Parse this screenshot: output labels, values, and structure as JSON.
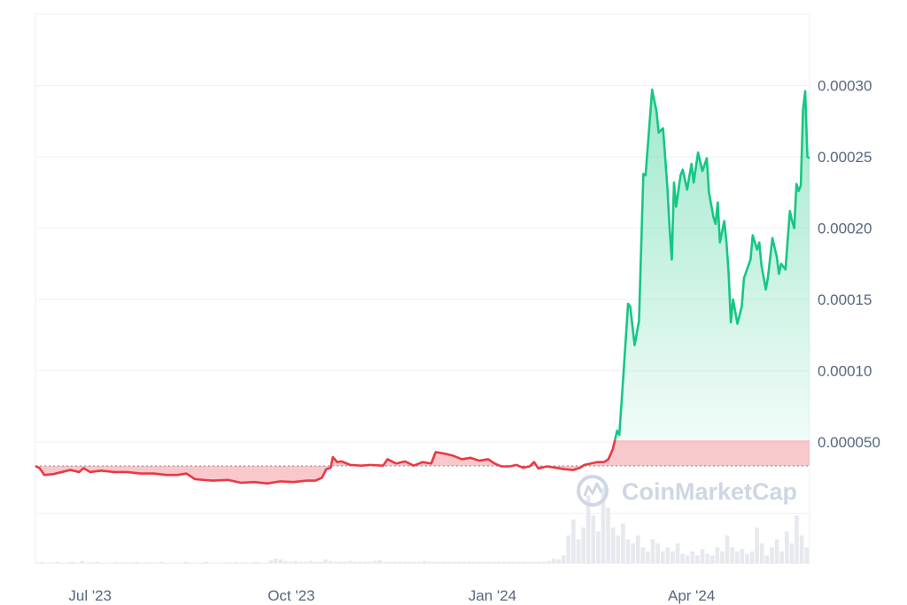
{
  "chart_data": {
    "type": "area",
    "watermark": "CoinMarketCap",
    "x_tick_labels": [
      "Jul '23",
      "Oct '23",
      "Jan '24",
      "Apr '24"
    ],
    "y_tick_labels": [
      "0.000050",
      "0.00010",
      "0.00015",
      "0.00020",
      "0.00025",
      "0.00030"
    ],
    "y_ticks": [
      5e-05,
      0.0001,
      0.00015,
      0.0002,
      0.00025,
      0.0003
    ],
    "ylim": [
      -3.5e-05,
      0.00035
    ],
    "xlim": [
      "2023-06-06",
      "2024-05-25"
    ],
    "baseline_price": 3.33e-05,
    "grid": true,
    "colors": {
      "up": "#16c784",
      "down": "#ea3943",
      "grid": "#eff2f5",
      "baseline": "#7d8593",
      "volume": "#e6e9ee"
    },
    "price_series": {
      "name": "Price",
      "points": [
        [
          "2023-06-06",
          3.33e-05
        ],
        [
          "2023-06-08",
          3.16e-05
        ],
        [
          "2023-06-10",
          2.7e-05
        ],
        [
          "2023-06-14",
          2.75e-05
        ],
        [
          "2023-06-18",
          2.9e-05
        ],
        [
          "2023-06-22",
          3.05e-05
        ],
        [
          "2023-06-26",
          2.9e-05
        ],
        [
          "2023-06-28",
          3.18e-05
        ],
        [
          "2023-07-01",
          2.9e-05
        ],
        [
          "2023-07-06",
          3e-05
        ],
        [
          "2023-07-12",
          2.9e-05
        ],
        [
          "2023-07-18",
          2.9e-05
        ],
        [
          "2023-07-24",
          2.8e-05
        ],
        [
          "2023-07-30",
          2.8e-05
        ],
        [
          "2023-08-05",
          2.7e-05
        ],
        [
          "2023-08-10",
          2.7e-05
        ],
        [
          "2023-08-14",
          2.8e-05
        ],
        [
          "2023-08-18",
          2.4e-05
        ],
        [
          "2023-08-26",
          2.3e-05
        ],
        [
          "2023-09-02",
          2.35e-05
        ],
        [
          "2023-09-08",
          2.15e-05
        ],
        [
          "2023-09-14",
          2.2e-05
        ],
        [
          "2023-09-20",
          2.1e-05
        ],
        [
          "2023-09-26",
          2.25e-05
        ],
        [
          "2023-10-02",
          2.2e-05
        ],
        [
          "2023-10-08",
          2.3e-05
        ],
        [
          "2023-10-12",
          2.3e-05
        ],
        [
          "2023-10-15",
          2.5e-05
        ],
        [
          "2023-10-17",
          3.1e-05
        ],
        [
          "2023-10-19",
          3.2e-05
        ],
        [
          "2023-10-20",
          3.95e-05
        ],
        [
          "2023-10-22",
          3.6e-05
        ],
        [
          "2023-10-24",
          3.65e-05
        ],
        [
          "2023-10-28",
          3.4e-05
        ],
        [
          "2023-11-02",
          3.35e-05
        ],
        [
          "2023-11-06",
          3.4e-05
        ],
        [
          "2023-11-12",
          3.35e-05
        ],
        [
          "2023-11-14",
          3.8e-05
        ],
        [
          "2023-11-18",
          3.5e-05
        ],
        [
          "2023-11-22",
          3.65e-05
        ],
        [
          "2023-11-26",
          3.35e-05
        ],
        [
          "2023-11-30",
          3.6e-05
        ],
        [
          "2023-12-04",
          3.5e-05
        ],
        [
          "2023-12-06",
          4.3e-05
        ],
        [
          "2023-12-10",
          4.2e-05
        ],
        [
          "2023-12-14",
          4.05e-05
        ],
        [
          "2023-12-18",
          3.8e-05
        ],
        [
          "2023-12-22",
          3.9e-05
        ],
        [
          "2023-12-26",
          3.7e-05
        ],
        [
          "2023-12-30",
          3.8e-05
        ],
        [
          "2024-01-02",
          3.5e-05
        ],
        [
          "2024-01-05",
          3.3e-05
        ],
        [
          "2024-01-09",
          3.3e-05
        ],
        [
          "2024-01-12",
          3.4e-05
        ],
        [
          "2024-01-15",
          3.2e-05
        ],
        [
          "2024-01-18",
          3.3e-05
        ],
        [
          "2024-01-20",
          3.6e-05
        ],
        [
          "2024-01-22",
          3.15e-05
        ],
        [
          "2024-01-26",
          3.3e-05
        ],
        [
          "2024-01-30",
          3.2e-05
        ],
        [
          "2024-02-03",
          3.1e-05
        ],
        [
          "2024-02-07",
          3.05e-05
        ],
        [
          "2024-02-10",
          3.2e-05
        ],
        [
          "2024-02-12",
          3.4e-05
        ],
        [
          "2024-02-15",
          3.5e-05
        ],
        [
          "2024-02-18",
          3.6e-05
        ],
        [
          "2024-02-21",
          3.6e-05
        ],
        [
          "2024-02-23",
          3.8e-05
        ],
        [
          "2024-02-25",
          4.5e-05
        ],
        [
          "2024-02-27",
          5.8e-05
        ],
        [
          "2024-02-28",
          5.5e-05
        ],
        [
          "2024-03-01",
          0.0001
        ],
        [
          "2024-03-03",
          0.000147
        ],
        [
          "2024-03-04",
          0.000145
        ],
        [
          "2024-03-06",
          0.000118
        ],
        [
          "2024-03-08",
          0.000135
        ],
        [
          "2024-03-10",
          0.000238
        ],
        [
          "2024-03-11",
          0.000237
        ],
        [
          "2024-03-14",
          0.000297
        ],
        [
          "2024-03-16",
          0.000282
        ],
        [
          "2024-03-17",
          0.000267
        ],
        [
          "2024-03-19",
          0.00027
        ],
        [
          "2024-03-21",
          0.000228
        ],
        [
          "2024-03-22",
          0.0002
        ],
        [
          "2024-03-23",
          0.000178
        ],
        [
          "2024-03-24",
          0.000232
        ],
        [
          "2024-03-25",
          0.000215
        ],
        [
          "2024-03-27",
          0.000237
        ],
        [
          "2024-03-28",
          0.000241
        ],
        [
          "2024-03-30",
          0.000227
        ],
        [
          "2024-04-01",
          0.000245
        ],
        [
          "2024-04-02",
          0.000232
        ],
        [
          "2024-04-04",
          0.000253
        ],
        [
          "2024-04-06",
          0.00024
        ],
        [
          "2024-04-08",
          0.000249
        ],
        [
          "2024-04-09",
          0.000225
        ],
        [
          "2024-04-11",
          0.000208
        ],
        [
          "2024-04-12",
          0.000203
        ],
        [
          "2024-04-13",
          0.000218
        ],
        [
          "2024-04-14",
          0.00019
        ],
        [
          "2024-04-16",
          0.000205
        ],
        [
          "2024-04-17",
          0.00019
        ],
        [
          "2024-04-18",
          0.000168
        ],
        [
          "2024-04-19",
          0.000134
        ],
        [
          "2024-04-20",
          0.00015
        ],
        [
          "2024-04-22",
          0.000133
        ],
        [
          "2024-04-24",
          0.000145
        ],
        [
          "2024-04-25",
          0.000165
        ],
        [
          "2024-04-28",
          0.000178
        ],
        [
          "2024-04-29",
          0.000195
        ],
        [
          "2024-05-01",
          0.000185
        ],
        [
          "2024-05-02",
          0.00019
        ],
        [
          "2024-05-03",
          0.000174
        ],
        [
          "2024-05-05",
          0.000157
        ],
        [
          "2024-05-06",
          0.000166
        ],
        [
          "2024-05-08",
          0.000193
        ],
        [
          "2024-05-10",
          0.00018
        ],
        [
          "2024-05-11",
          0.000168
        ],
        [
          "2024-05-12",
          0.000175
        ],
        [
          "2024-05-14",
          0.000171
        ],
        [
          "2024-05-15",
          0.000192
        ],
        [
          "2024-05-16",
          0.000212
        ],
        [
          "2024-05-17",
          0.000205
        ],
        [
          "2024-05-18",
          0.0002
        ],
        [
          "2024-05-19",
          0.000231
        ],
        [
          "2024-05-20",
          0.000226
        ],
        [
          "2024-05-21",
          0.00023
        ],
        [
          "2024-05-22",
          0.000283
        ],
        [
          "2024-05-23",
          0.000296
        ],
        [
          "2024-05-24",
          0.00025
        ],
        [
          "2024-05-25",
          0.000249
        ]
      ]
    },
    "volume_series": {
      "name": "Volume",
      "relative_heights": [
        0.01,
        0.02,
        0.01,
        0.01,
        0.02,
        0.01,
        0.01,
        0.02,
        0.01,
        0.03,
        0.01,
        0.01,
        0.02,
        0.01,
        0.01,
        0.01,
        0.02,
        0.01,
        0.01,
        0.01,
        0.02,
        0.01,
        0.01,
        0.01,
        0.01,
        0.02,
        0.01,
        0.01,
        0.01,
        0.01,
        0.02,
        0.01,
        0.01,
        0.01,
        0.02,
        0.01,
        0.01,
        0.01,
        0.01,
        0.01,
        0.02,
        0.01,
        0.01,
        0.01,
        0.02,
        0.01,
        0.01,
        0.04,
        0.06,
        0.05,
        0.03,
        0.02,
        0.03,
        0.02,
        0.02,
        0.03,
        0.02,
        0.02,
        0.05,
        0.03,
        0.02,
        0.02,
        0.02,
        0.03,
        0.02,
        0.02,
        0.02,
        0.02,
        0.03,
        0.04,
        0.02,
        0.02,
        0.02,
        0.02,
        0.02,
        0.02,
        0.02,
        0.02,
        0.03,
        0.02,
        0.02,
        0.02,
        0.02,
        0.02,
        0.02,
        0.02,
        0.02,
        0.02,
        0.02,
        0.02,
        0.02,
        0.02,
        0.02,
        0.02,
        0.02,
        0.02,
        0.02,
        0.02,
        0.02,
        0.02,
        0.02,
        0.02,
        0.02,
        0.03,
        0.06,
        0.05,
        0.1,
        0.35,
        0.55,
        0.3,
        0.45,
        0.85,
        0.6,
        0.4,
        0.95,
        0.7,
        0.45,
        0.35,
        0.5,
        0.3,
        0.25,
        0.35,
        0.2,
        0.15,
        0.3,
        0.25,
        0.15,
        0.2,
        0.15,
        0.25,
        0.12,
        0.1,
        0.15,
        0.1,
        0.18,
        0.12,
        0.1,
        0.2,
        0.15,
        0.35,
        0.2,
        0.15,
        0.18,
        0.12,
        0.15,
        0.45,
        0.25,
        0.1,
        0.2,
        0.3,
        0.15,
        0.4,
        0.25,
        0.6,
        0.35,
        0.2
      ]
    }
  }
}
